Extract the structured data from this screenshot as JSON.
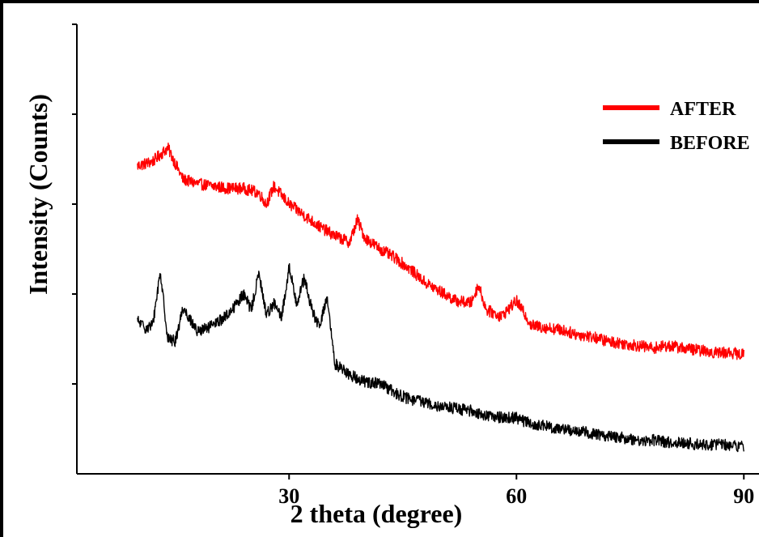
{
  "chart_data": {
    "type": "line",
    "xlabel": "2 theta (degree)",
    "ylabel": "Intensity (Counts)",
    "xlim": [
      2,
      92
    ],
    "ylim": [
      0,
      100
    ],
    "x_ticks": [
      30,
      60,
      90
    ],
    "legend_position": "top-right",
    "grid": false,
    "series": [
      {
        "name": "AFTER",
        "color": "#ff0000",
        "x": [
          10,
          12,
          14,
          16,
          18,
          20,
          22,
          24,
          26,
          27,
          28,
          30,
          32,
          34,
          36,
          38,
          39,
          40,
          42,
          44,
          46,
          48,
          50,
          52,
          54,
          55,
          56,
          58,
          60,
          62,
          64,
          66,
          68,
          70,
          72,
          74,
          76,
          78,
          80,
          82,
          84,
          86,
          88,
          90
        ],
        "values": [
          68.5,
          69.5,
          72.5,
          65.5,
          64.5,
          64.0,
          63.5,
          63.5,
          62.5,
          60.0,
          64.0,
          60.0,
          57.5,
          55.0,
          53.0,
          51.5,
          56.5,
          52.5,
          50.0,
          48.0,
          45.5,
          42.5,
          40.5,
          38.5,
          38.0,
          42.0,
          36.5,
          35.0,
          38.5,
          33.0,
          32.5,
          32.0,
          31.0,
          30.5,
          29.5,
          29.0,
          28.5,
          28.0,
          28.5,
          28.0,
          27.5,
          27.0,
          27.0,
          26.5
        ]
      },
      {
        "name": "BEFORE",
        "color": "#000000",
        "x": [
          10,
          11,
          12,
          13,
          14,
          15,
          16,
          18,
          20,
          22,
          24,
          25,
          26,
          27,
          28,
          29,
          30,
          31,
          32,
          33,
          34,
          35,
          36,
          37,
          38,
          40,
          42,
          44,
          46,
          48,
          50,
          52,
          54,
          56,
          58,
          60,
          62,
          64,
          66,
          68,
          70,
          72,
          74,
          76,
          78,
          80,
          82,
          84,
          86,
          88,
          90
        ],
        "values": [
          34.0,
          32.5,
          33.0,
          45.0,
          30.0,
          29.5,
          37.0,
          31.5,
          33.0,
          35.5,
          40.0,
          36.5,
          44.5,
          35.5,
          38.0,
          34.5,
          46.0,
          38.0,
          43.5,
          36.5,
          32.5,
          39.5,
          24.5,
          23.5,
          22.0,
          20.5,
          20.0,
          18.0,
          16.5,
          16.0,
          15.0,
          14.5,
          14.0,
          13.0,
          12.5,
          12.5,
          11.0,
          10.5,
          10.0,
          9.5,
          9.0,
          8.5,
          8.0,
          7.5,
          7.5,
          7.0,
          7.0,
          6.5,
          6.5,
          6.5,
          6.0
        ]
      }
    ]
  }
}
